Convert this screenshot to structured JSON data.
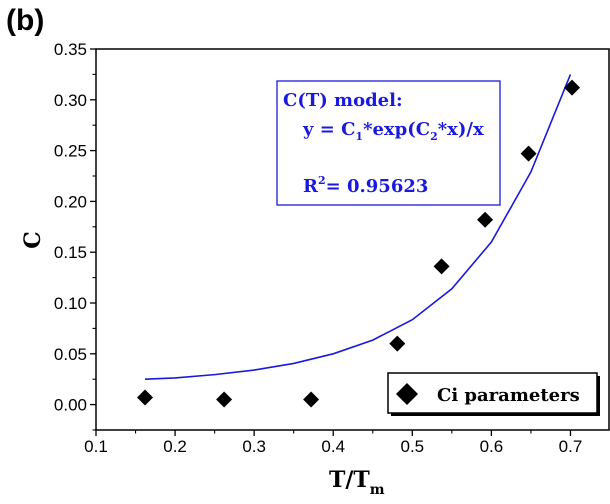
{
  "panel_label": "(b)",
  "colors": {
    "fit_line": "#1a1adf",
    "markers": "#000000",
    "annotation_text": "#1a1adf",
    "annotation_border": "#1a1adf"
  },
  "annotation": {
    "line1": "C(T) model:",
    "line2_parts": [
      "y = C",
      "1",
      "*exp(C",
      "2",
      "*x)/x"
    ],
    "line3_parts": [
      "R",
      "2",
      "=  0.95623"
    ]
  },
  "chart_data": {
    "type": "scatter",
    "ylabel": "C",
    "xlabel_main": "T/T",
    "xlabel_sub": "m",
    "xlim": [
      0.1,
      0.75
    ],
    "ylim": [
      -0.025,
      0.35
    ],
    "x_ticks": [
      0.1,
      0.2,
      0.3,
      0.4,
      0.5,
      0.6,
      0.7
    ],
    "x_tick_labels": [
      "0.1",
      "0.2",
      "0.3",
      "0.4",
      "0.5",
      "0.6",
      "0.7"
    ],
    "y_ticks": [
      0.0,
      0.05,
      0.1,
      0.15,
      0.2,
      0.25,
      0.3,
      0.35
    ],
    "y_tick_labels": [
      "0.00",
      "0.05",
      "0.10",
      "0.15",
      "0.20",
      "0.25",
      "0.30",
      "0.35"
    ],
    "legend_placement": "bottom-right",
    "series": [
      {
        "name": "Ci parameters",
        "kind": "scatter",
        "marker": "diamond",
        "x": [
          0.162,
          0.262,
          0.372,
          0.481,
          0.537,
          0.592,
          0.647,
          0.702
        ],
        "y": [
          0.007,
          0.005,
          0.005,
          0.06,
          0.136,
          0.182,
          0.247,
          0.312
        ]
      },
      {
        "kind": "line",
        "model": "y = C1*exp(C2*x)/x",
        "x": [
          0.162,
          0.2,
          0.25,
          0.3,
          0.35,
          0.4,
          0.45,
          0.5,
          0.55,
          0.6,
          0.65,
          0.7
        ],
        "y": [
          0.025,
          0.0262,
          0.0295,
          0.034,
          0.0405,
          0.05,
          0.0635,
          0.0835,
          0.114,
          0.16,
          0.229,
          0.325
        ]
      }
    ]
  }
}
